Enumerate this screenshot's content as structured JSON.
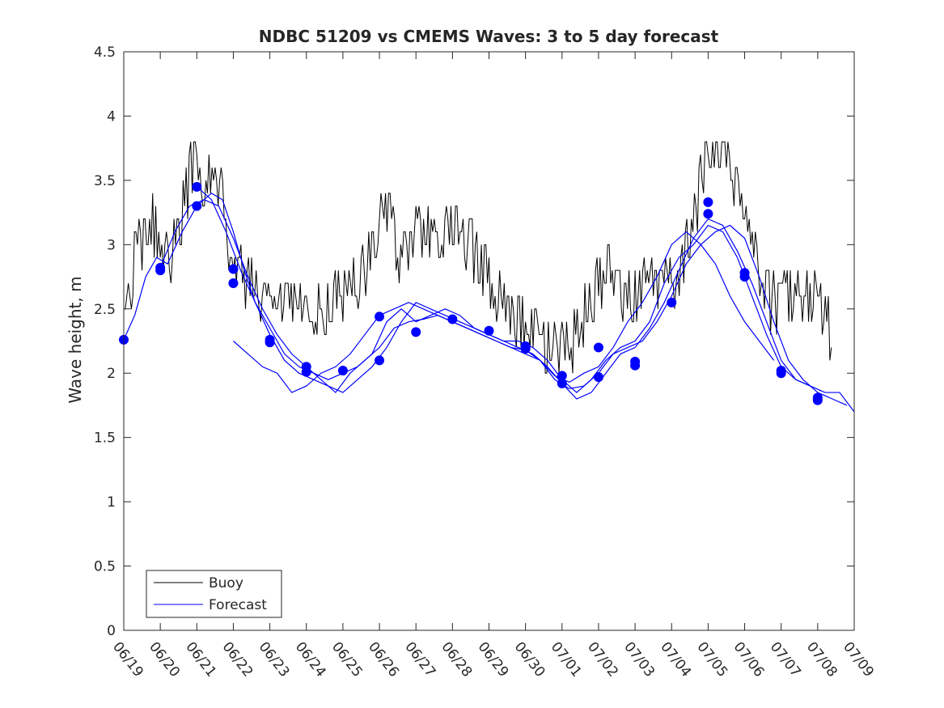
{
  "chart_data": {
    "type": "line",
    "title": "NDBC 51209 vs CMEMS Waves: 3 to 5 day forecast",
    "xlabel": "",
    "ylabel": "Wave height, m",
    "x_unit": "date (mm/dd)",
    "x_ticks": [
      "06/19",
      "06/20",
      "06/21",
      "06/22",
      "06/23",
      "06/24",
      "06/25",
      "06/26",
      "06/27",
      "06/28",
      "06/29",
      "06/30",
      "07/01",
      "07/02",
      "07/03",
      "07/04",
      "07/05",
      "07/06",
      "07/07",
      "07/08",
      "07/09"
    ],
    "xlim": [
      "06/19",
      "07/09"
    ],
    "ylim": [
      0,
      4.5
    ],
    "y_ticks": [
      "0",
      "0.5",
      "1",
      "1.5",
      "2",
      "2.5",
      "3",
      "3.5",
      "4",
      "4.5"
    ],
    "grid": false,
    "legend": {
      "placement": "bottom-left",
      "entries": [
        "Buoy",
        "Forecast"
      ]
    },
    "colors": {
      "buoy": "#000000",
      "forecast": "#0000ff",
      "axes": "#262626"
    },
    "series": [
      {
        "name": "Buoy",
        "x_days_since_0619": [
          0.0,
          0.15,
          0.3,
          0.5,
          0.7,
          0.9,
          1.1,
          1.3,
          1.5,
          1.7,
          1.85,
          2.0,
          2.15,
          2.3,
          2.5,
          2.7,
          2.9,
          3.1,
          3.3,
          3.5,
          3.7,
          4.0,
          4.3,
          4.6,
          4.9,
          5.2,
          5.5,
          5.8,
          6.1,
          6.4,
          6.7,
          6.9,
          7.1,
          7.3,
          7.6,
          7.9,
          8.2,
          8.5,
          8.8,
          9.1,
          9.4,
          9.7,
          10.0,
          10.3,
          10.6,
          10.9,
          11.2,
          11.5,
          11.8,
          12.0,
          12.2,
          12.4,
          12.6,
          12.8,
          13.0,
          13.2,
          13.5,
          13.8,
          14.1,
          14.4,
          14.7,
          15.0,
          15.3,
          15.6,
          15.9,
          16.1,
          16.3,
          16.5,
          16.7,
          16.9,
          17.1,
          17.3,
          17.5,
          17.7,
          18.0,
          18.3,
          18.6,
          18.8,
          19.0,
          19.2,
          19.4
        ],
        "y": [
          2.45,
          2.55,
          2.9,
          3.05,
          3.2,
          3.1,
          2.95,
          2.9,
          3.1,
          3.35,
          3.6,
          3.65,
          3.5,
          3.55,
          3.5,
          3.35,
          3.0,
          2.85,
          2.75,
          2.7,
          2.55,
          2.45,
          2.45,
          2.5,
          2.45,
          2.5,
          2.45,
          2.6,
          2.65,
          2.7,
          2.85,
          3.1,
          3.3,
          3.15,
          2.9,
          3.1,
          3.1,
          3.05,
          3.1,
          3.1,
          3.0,
          2.9,
          2.7,
          2.6,
          2.45,
          2.4,
          2.3,
          2.15,
          2.2,
          2.15,
          2.15,
          2.35,
          2.45,
          2.55,
          2.7,
          2.8,
          2.75,
          2.55,
          2.6,
          2.75,
          2.7,
          2.65,
          2.85,
          3.2,
          3.6,
          3.75,
          3.8,
          3.65,
          3.55,
          3.45,
          3.2,
          2.85,
          2.7,
          2.55,
          2.55,
          2.6,
          2.55,
          2.6,
          2.55,
          2.45,
          2.3
        ]
      },
      {
        "name": "Forecast",
        "runs": [
          {
            "x_days_since_0619": [
              0.0,
              0.3,
              0.6,
              0.9,
              1.2,
              1.6,
              2.0,
              2.4,
              2.7,
              3.0,
              3.3,
              3.6,
              4.0,
              4.4,
              4.8,
              5.2,
              5.6,
              6.0,
              6.4,
              6.8,
              7.2,
              7.6,
              8.0,
              8.4,
              8.8,
              9.2,
              9.6,
              10.0,
              10.4,
              10.8,
              11.2,
              11.6,
              12.0,
              12.4,
              12.8,
              13.2,
              13.6,
              14.0,
              14.4,
              14.8,
              15.2,
              15.6,
              16.0,
              16.4,
              16.8,
              17.2,
              17.6,
              18.0,
              18.4,
              18.8,
              19.2,
              19.6,
              20.0
            ],
            "y": [
              2.26,
              2.45,
              2.75,
              2.9,
              2.85,
              3.1,
              3.3,
              3.4,
              3.35,
              3.1,
              2.8,
              2.55,
              2.35,
              2.15,
              2.05,
              2.0,
              1.95,
              2.0,
              2.05,
              2.15,
              2.4,
              2.5,
              2.4,
              2.45,
              2.5,
              2.45,
              2.35,
              2.3,
              2.25,
              2.25,
              2.2,
              2.1,
              1.95,
              1.85,
              1.95,
              2.1,
              2.2,
              2.25,
              2.4,
              2.7,
              2.9,
              3.0,
              3.15,
              3.1,
              2.9,
              2.6,
              2.3,
              2.05,
              1.95,
              1.9,
              1.85,
              1.85,
              1.7
            ]
          },
          {
            "x_days_since_0619": [
              1.0,
              1.4,
              1.8,
              2.2,
              2.6,
              3.0,
              3.4,
              3.8,
              4.2,
              4.6,
              5.0,
              5.4,
              5.8,
              6.2,
              6.6,
              7.0,
              7.4,
              7.8,
              8.2,
              8.6,
              9.0,
              9.4,
              9.8,
              10.2,
              10.6,
              11.0,
              11.4,
              11.8,
              12.2,
              12.6,
              13.0,
              13.4,
              13.8,
              14.2,
              14.6,
              15.0,
              15.4,
              15.8,
              16.2,
              16.6,
              17.0,
              17.4,
              17.8,
              18.2,
              18.6,
              19.0,
              19.4,
              19.8
            ],
            "y": [
              2.82,
              3.1,
              3.3,
              3.35,
              3.3,
              3.05,
              2.75,
              2.5,
              2.3,
              2.15,
              2.05,
              1.95,
              1.85,
              2.0,
              2.1,
              2.2,
              2.35,
              2.4,
              2.42,
              2.45,
              2.4,
              2.35,
              2.3,
              2.25,
              2.2,
              2.18,
              2.1,
              1.95,
              1.88,
              1.9,
              2.0,
              2.15,
              2.2,
              2.25,
              2.4,
              2.6,
              2.85,
              3.0,
              3.1,
              3.15,
              3.05,
              2.75,
              2.4,
              2.1,
              1.95,
              1.85,
              1.8,
              1.75
            ]
          },
          {
            "x_days_since_0619": [
              2.0,
              2.4,
              2.8,
              3.2,
              3.6,
              4.0,
              4.4,
              4.8,
              5.2,
              5.6,
              6.0,
              6.4,
              6.8,
              7.2,
              7.6,
              8.0,
              8.4,
              8.8,
              9.2,
              9.6,
              10.0,
              10.4,
              10.8,
              11.2,
              11.6,
              12.0,
              12.4,
              12.8,
              13.2,
              13.6,
              14.0,
              14.4,
              14.8,
              15.2,
              15.6,
              16.0,
              16.4,
              16.8,
              17.2,
              17.6,
              18.0,
              18.4,
              18.8
            ],
            "y": [
              3.45,
              3.35,
              3.1,
              2.8,
              2.55,
              2.3,
              2.1,
              2.0,
              1.95,
              1.9,
              1.85,
              1.95,
              2.05,
              2.2,
              2.4,
              2.55,
              2.5,
              2.45,
              2.4,
              2.35,
              2.3,
              2.25,
              2.2,
              2.15,
              2.05,
              1.92,
              1.8,
              1.85,
              2.0,
              2.15,
              2.2,
              2.35,
              2.55,
              2.8,
              3.05,
              3.2,
              3.15,
              2.95,
              2.7,
              2.4,
              2.1,
              1.95,
              1.9
            ]
          },
          {
            "x_days_since_0619": [
              3.0,
              3.4,
              3.8,
              4.2,
              4.6,
              5.0,
              5.4,
              5.8,
              6.2,
              6.6,
              7.0,
              7.4,
              7.8,
              8.2,
              8.6,
              9.0,
              9.4,
              9.8,
              10.2,
              10.6,
              11.0,
              11.4,
              11.8,
              12.2,
              12.6,
              13.0,
              13.4,
              13.8,
              14.2,
              14.6,
              15.0,
              15.4,
              15.8,
              16.2,
              16.6,
              17.0,
              17.4,
              17.8
            ],
            "y": [
              2.25,
              2.15,
              2.05,
              2.0,
              1.85,
              1.9,
              2.0,
              2.05,
              2.15,
              2.3,
              2.45,
              2.5,
              2.55,
              2.5,
              2.45,
              2.4,
              2.35,
              2.3,
              2.25,
              2.2,
              2.15,
              2.1,
              1.98,
              1.93,
              2.0,
              2.05,
              2.2,
              2.4,
              2.55,
              2.75,
              3.0,
              3.1,
              3.0,
              2.85,
              2.6,
              2.4,
              2.25,
              2.1
            ]
          }
        ],
        "markers_x_days_since_0619": [
          0.0,
          1.0,
          1.0,
          2.0,
          2.0,
          3.0,
          3.0,
          4.0,
          4.0,
          5.0,
          5.0,
          6.0,
          7.0,
          7.0,
          8.0,
          9.0,
          10.0,
          11.0,
          11.0,
          12.0,
          12.0,
          13.0,
          13.0,
          14.0,
          14.0,
          15.0,
          16.0,
          16.0,
          17.0,
          17.0,
          18.0,
          18.0,
          19.0,
          19.0
        ],
        "markers_y": [
          2.26,
          2.82,
          2.8,
          3.45,
          3.3,
          2.81,
          2.7,
          2.26,
          2.24,
          2.05,
          2.01,
          2.02,
          2.1,
          2.44,
          2.32,
          2.42,
          2.33,
          2.21,
          2.19,
          1.98,
          1.92,
          2.2,
          1.97,
          2.09,
          2.06,
          2.55,
          3.33,
          3.24,
          2.78,
          2.75,
          2.02,
          2.0,
          1.81,
          1.79
        ]
      }
    ]
  }
}
